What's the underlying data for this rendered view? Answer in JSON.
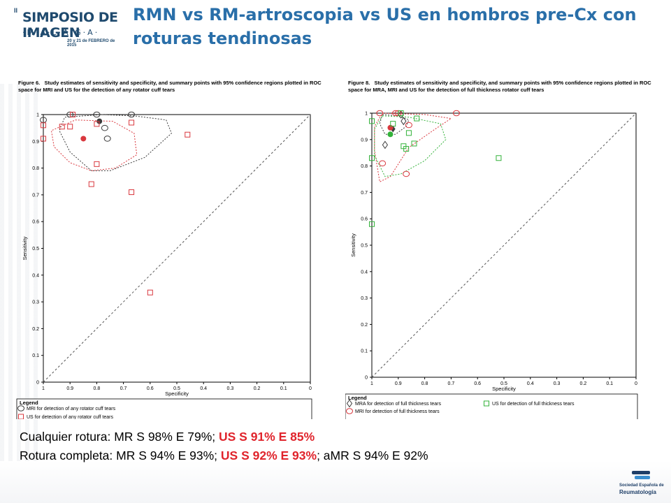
{
  "logo": {
    "edition": "II",
    "line1": "SIMPOSIO DE IMAGEN",
    "line2": "·M·Á·L·A·G·A·",
    "line3": "20 y 21 de FEBRERO de 2015"
  },
  "header": {
    "title": "RMN vs RM-artroscopia vs US en hombros pre-Cx con roturas tendinosas"
  },
  "summary": {
    "line1_a": "Cualquier rotura: MR S 98% E 79%; ",
    "line1_b": "US S 91% E 85%",
    "line2_a": "Rotura completa: MR S 94% E 93%; ",
    "line2_b": "US S 92% E 93%",
    "line2_c": "; aMR S 94% E 92%"
  },
  "footer_logo": {
    "line1": "Sociedad Española de",
    "line2": "Reumatología"
  },
  "colors": {
    "title": "#2a6fa9",
    "mri": "#3c3c3c",
    "us": "#d9383e",
    "mra": "#3c3c3c",
    "mri8": "#d9383e",
    "us8": "#33b23a",
    "emphasis": "#e0242c"
  },
  "chart_data": [
    {
      "type": "scatter",
      "figure_label": "Figure 6.",
      "caption": "Study estimates of sensitivity and specificity, and summary points with 95% confidence regions plotted in ROC space for MRI and US for the detection of any rotator cuff tears",
      "xlabel": "Specificity",
      "ylabel": "Sensitivity",
      "xlim": [
        1,
        0
      ],
      "ylim": [
        0,
        1
      ],
      "ticks": [
        "0",
        "0.1",
        "0.2",
        "0.3",
        "0.4",
        "0.5",
        "0.6",
        "0.7",
        "0.8",
        "0.9",
        "1"
      ],
      "xticks": [
        "1",
        "0.9",
        "0.8",
        "0.7",
        "0.6",
        "0.5",
        "0.4",
        "0.3",
        "0.2",
        "0.1",
        "0"
      ],
      "legend_title": "Legend",
      "series": [
        {
          "name": "MRI for detection of any rotator cuff tears",
          "marker": "circle",
          "color": "#3c3c3c",
          "points": [
            [
              1.0,
              0.98
            ],
            [
              0.9,
              1.0
            ],
            [
              0.8,
              1.0
            ],
            [
              0.67,
              1.0
            ],
            [
              0.77,
              0.95
            ],
            [
              0.76,
              0.91
            ]
          ],
          "summary": [
            0.79,
            0.975
          ],
          "region": [
            [
              0.78,
              1.0
            ],
            [
              0.66,
              0.995
            ],
            [
              0.54,
              0.98
            ],
            [
              0.52,
              0.93
            ],
            [
              0.62,
              0.84
            ],
            [
              0.75,
              0.79
            ],
            [
              0.82,
              0.79
            ],
            [
              0.9,
              0.86
            ],
            [
              0.94,
              0.94
            ],
            [
              0.92,
              0.99
            ]
          ]
        },
        {
          "name": "US for detection of any rotator cuff tears",
          "marker": "square",
          "color": "#d9383e",
          "points": [
            [
              1.0,
              0.96
            ],
            [
              0.93,
              0.955
            ],
            [
              0.9,
              0.955
            ],
            [
              0.8,
              0.965
            ],
            [
              0.67,
              0.97
            ],
            [
              0.46,
              0.925
            ],
            [
              1.0,
              0.91
            ],
            [
              0.8,
              0.815
            ],
            [
              0.82,
              0.74
            ],
            [
              0.67,
              0.71
            ],
            [
              0.6,
              0.335
            ],
            [
              0.89,
              1.0
            ]
          ],
          "summary": [
            0.85,
            0.91
          ],
          "region": [
            [
              0.88,
              0.98
            ],
            [
              0.74,
              0.975
            ],
            [
              0.66,
              0.93
            ],
            [
              0.65,
              0.85
            ],
            [
              0.73,
              0.8
            ],
            [
              0.82,
              0.79
            ],
            [
              0.9,
              0.82
            ],
            [
              0.96,
              0.88
            ],
            [
              0.97,
              0.94
            ]
          ]
        }
      ]
    },
    {
      "type": "scatter",
      "figure_label": "Figure 8.",
      "caption": "Study estimates of sensitivity and specificity, and summary points with 95% confidence regions plotted in ROC space for MRA, MRI and US for the detection of full thickness rotator cuff tears",
      "xlabel": "Specificity",
      "ylabel": "Sensitivity",
      "xlim": [
        1,
        0
      ],
      "ylim": [
        0,
        1
      ],
      "ticks": [
        "0",
        "0.1",
        "0.2",
        "0.3",
        "0.4",
        "0.5",
        "0.6",
        "0.7",
        "0.8",
        "0.9",
        "1"
      ],
      "xticks": [
        "1",
        "0.9",
        "0.8",
        "0.7",
        "0.6",
        "0.5",
        "0.4",
        "0.3",
        "0.2",
        "0.1",
        "0"
      ],
      "legend_title": "Legend",
      "series": [
        {
          "name": "MRA for detection of full thickness tears",
          "marker": "diamond",
          "color": "#3c3c3c",
          "points": [
            [
              0.89,
              0.995
            ],
            [
              0.88,
              0.97
            ],
            [
              0.95,
              0.88
            ]
          ],
          "summary": [
            0.92,
            0.94
          ],
          "region": [
            [
              0.96,
              0.995
            ],
            [
              0.9,
              0.99
            ],
            [
              0.86,
              0.975
            ],
            [
              0.87,
              0.95
            ],
            [
              0.91,
              0.92
            ],
            [
              0.95,
              0.92
            ],
            [
              0.97,
              0.96
            ]
          ]
        },
        {
          "name": "MRI for detection of full thickness tears",
          "marker": "circle",
          "color": "#d9383e",
          "points": [
            [
              0.97,
              1.0
            ],
            [
              0.91,
              1.0
            ],
            [
              0.9,
              1.0
            ],
            [
              0.68,
              1.0
            ],
            [
              0.86,
              0.955
            ],
            [
              0.96,
              0.81
            ],
            [
              0.87,
              0.77
            ]
          ],
          "summary": [
            0.93,
            0.945
          ],
          "region": [
            [
              0.96,
              1.0
            ],
            [
              0.8,
              0.995
            ],
            [
              0.7,
              0.98
            ],
            [
              0.76,
              0.94
            ],
            [
              0.86,
              0.87
            ],
            [
              0.93,
              0.76
            ],
            [
              0.97,
              0.74
            ],
            [
              0.99,
              0.86
            ],
            [
              0.99,
              0.95
            ]
          ]
        },
        {
          "name": "US for detection of full thickness tears",
          "marker": "square",
          "color": "#33b23a",
          "points": [
            [
              1.0,
              0.97
            ],
            [
              0.89,
              1.0
            ],
            [
              0.83,
              0.98
            ],
            [
              0.86,
              0.925
            ],
            [
              0.84,
              0.885
            ],
            [
              0.88,
              0.875
            ],
            [
              0.87,
              0.865
            ],
            [
              0.52,
              0.83
            ],
            [
              1.0,
              0.83
            ],
            [
              1.0,
              0.58
            ],
            [
              0.92,
              0.96
            ]
          ],
          "summary": [
            0.93,
            0.92
          ],
          "region": [
            [
              0.96,
              0.99
            ],
            [
              0.86,
              0.985
            ],
            [
              0.74,
              0.96
            ],
            [
              0.72,
              0.9
            ],
            [
              0.8,
              0.82
            ],
            [
              0.89,
              0.77
            ],
            [
              0.95,
              0.76
            ],
            [
              0.99,
              0.84
            ],
            [
              0.99,
              0.94
            ]
          ]
        }
      ]
    }
  ]
}
